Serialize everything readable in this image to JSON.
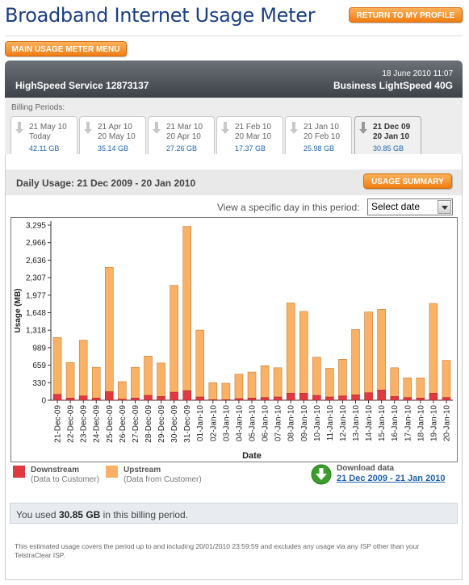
{
  "page_title": "Broadband Internet Usage Meter",
  "return_button": "RETURN TO MY PROFILE",
  "menu_button": "MAIN USAGE METER MENU",
  "service": {
    "date": "18 June 2010 11:07",
    "name": "HighSpeed Service 12873137",
    "plan": "Business LightSpeed 40G"
  },
  "billing": {
    "label": "Billing Periods:",
    "tabs": [
      {
        "from": "21 May 10",
        "to": "Today",
        "size": "42.11 GB"
      },
      {
        "from": "21 Apr 10",
        "to": "20 May 10",
        "size": "35.14 GB"
      },
      {
        "from": "21 Mar 10",
        "to": "20 Apr 10",
        "size": "27.26 GB"
      },
      {
        "from": "21 Feb 10",
        "to": "20 Mar 10",
        "size": "17.37 GB"
      },
      {
        "from": "21 Jan 10",
        "to": "20 Feb 10",
        "size": "25.98 GB"
      },
      {
        "from": "21 Dec 09",
        "to": "20 Jan 10",
        "size": "30.85 GB"
      }
    ]
  },
  "daily": {
    "label": "Daily Usage:",
    "range": "21 Dec 2009 - 20 Jan 2010",
    "summary_button": "USAGE SUMMARY"
  },
  "view_day": {
    "label": "View a specific day in this period:",
    "select_value": "Select date"
  },
  "chart_data": {
    "type": "bar",
    "stacked": true,
    "ylabel": "Usage (MB)",
    "xlabel": "Date",
    "ylim": [
      0,
      3295
    ],
    "yticks": [
      "0",
      "330",
      "659",
      "989",
      "1,318",
      "1,648",
      "1,977",
      "2,307",
      "2,636",
      "2,966",
      "3,295"
    ],
    "grid": false,
    "categories": [
      "21-Dec-09",
      "22-Dec-09",
      "23-Dec-09",
      "24-Dec-09",
      "25-Dec-09",
      "26-Dec-09",
      "27-Dec-09",
      "28-Dec-09",
      "29-Dec-09",
      "30-Dec-09",
      "31-Dec-09",
      "01-Jan-10",
      "02-Jan-10",
      "03-Jan-10",
      "04-Jan-10",
      "05-Jan-10",
      "06-Jan-10",
      "07-Jan-10",
      "08-Jan-10",
      "09-Jan-10",
      "10-Jan-10",
      "11-Jan-10",
      "12-Jan-10",
      "13-Jan-10",
      "14-Jan-10",
      "15-Jan-10",
      "16-Jan-10",
      "17-Jan-10",
      "18-Jan-10",
      "19-Jan-10",
      "20-Jan-10"
    ],
    "series": [
      {
        "name": "Downstream",
        "color": "#e2383f",
        "values": [
          110,
          40,
          80,
          40,
          160,
          20,
          40,
          90,
          70,
          150,
          180,
          60,
          10,
          10,
          30,
          40,
          50,
          60,
          130,
          130,
          90,
          60,
          80,
          100,
          140,
          190,
          70,
          50,
          40,
          130,
          50
        ]
      },
      {
        "name": "Upstream",
        "color": "#f9b265",
        "values": [
          1070,
          670,
          1050,
          580,
          2340,
          330,
          580,
          740,
          630,
          2010,
          3090,
          1260,
          320,
          310,
          460,
          490,
          600,
          550,
          1700,
          1540,
          720,
          540,
          690,
          1230,
          1520,
          1520,
          540,
          370,
          380,
          1690,
          700
        ]
      }
    ]
  },
  "legend": {
    "downstream": {
      "title": "Downstream",
      "sub": "(Data to Customer)"
    },
    "upstream": {
      "title": "Upstream",
      "sub": "(Data from Customer)"
    }
  },
  "download": {
    "label": "Download data",
    "link": "21 Dec 2009 - 21 Jan 2010"
  },
  "usage_summary": {
    "prefix": "You used",
    "amount": "30.85 GB",
    "suffix": "in this billing period."
  },
  "footnote": "This estimated usage covers the period up to and including 20/01/2010 23:59:59 and excludes any usage via any ISP other than your TelstraClear ISP."
}
